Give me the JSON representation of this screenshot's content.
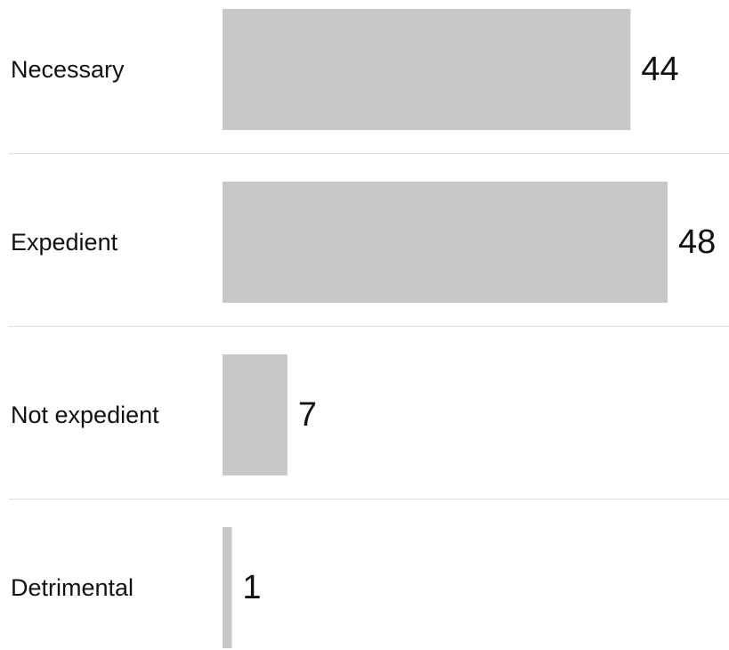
{
  "chart_data": {
    "type": "bar",
    "categories": [
      "Necessary",
      "Expedient",
      "Not expedient",
      "Detrimental"
    ],
    "values": [
      44,
      48,
      7,
      1
    ],
    "color": "#c8c8c8"
  }
}
